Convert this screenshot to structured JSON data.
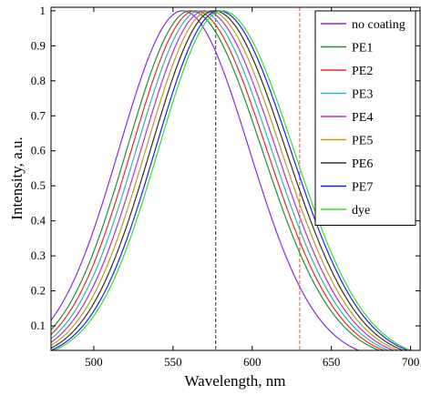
{
  "chart_data": {
    "type": "line",
    "title": "",
    "xlabel": "Wavelength, nm",
    "ylabel": "Intensity, a.u.",
    "xlim": [
      473,
      706
    ],
    "ylim": [
      0.03,
      1.01
    ],
    "xticks": [
      500,
      550,
      600,
      650,
      700
    ],
    "yticks": [
      0.1,
      0.2,
      0.3,
      0.4,
      0.5,
      0.6,
      0.7,
      0.8,
      0.9,
      1
    ],
    "grid": false,
    "legend_position": "top-right",
    "series": [
      {
        "name": "no coating",
        "color": "#8a2be2",
        "peak": 556,
        "sigma_left": 40,
        "sigma_right": 42
      },
      {
        "name": "PE1",
        "color": "#2e8b2e",
        "peak": 561,
        "sigma_left": 40,
        "sigma_right": 45
      },
      {
        "name": "PE2",
        "color": "#e0302a",
        "peak": 564,
        "sigma_left": 40,
        "sigma_right": 45
      },
      {
        "name": "PE3",
        "color": "#2bb8b8",
        "peak": 567,
        "sigma_left": 40,
        "sigma_right": 45
      },
      {
        "name": "PE4",
        "color": "#c030c0",
        "peak": 570,
        "sigma_left": 40,
        "sigma_right": 45
      },
      {
        "name": "PE5",
        "color": "#b8a020",
        "peak": 573,
        "sigma_left": 40,
        "sigma_right": 45
      },
      {
        "name": "PE6",
        "color": "#303030",
        "peak": 576,
        "sigma_left": 40,
        "sigma_right": 45
      },
      {
        "name": "PE7",
        "color": "#2020e0",
        "peak": 579,
        "sigma_left": 40,
        "sigma_right": 45
      },
      {
        "name": "dye",
        "color": "#30e030",
        "peak": 581,
        "sigma_left": 40,
        "sigma_right": 45
      }
    ],
    "vertical_markers": [
      {
        "x": 577,
        "color": "#333333"
      },
      {
        "x": 630,
        "color": "#e06040"
      }
    ]
  }
}
